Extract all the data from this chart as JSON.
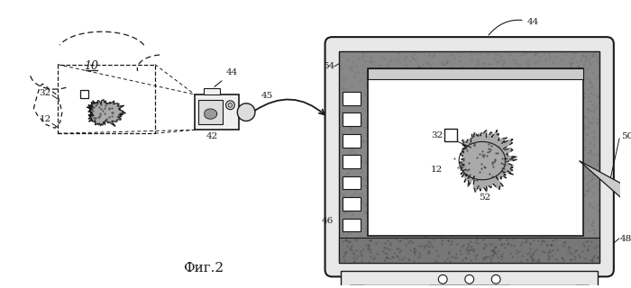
{
  "title": "Фиг.2",
  "bg_color": "#ffffff",
  "dark": "#1a1a1a",
  "gray_fill": "#c0c0c0",
  "light_gray": "#e0e0e0",
  "noise_gray": "#888888"
}
